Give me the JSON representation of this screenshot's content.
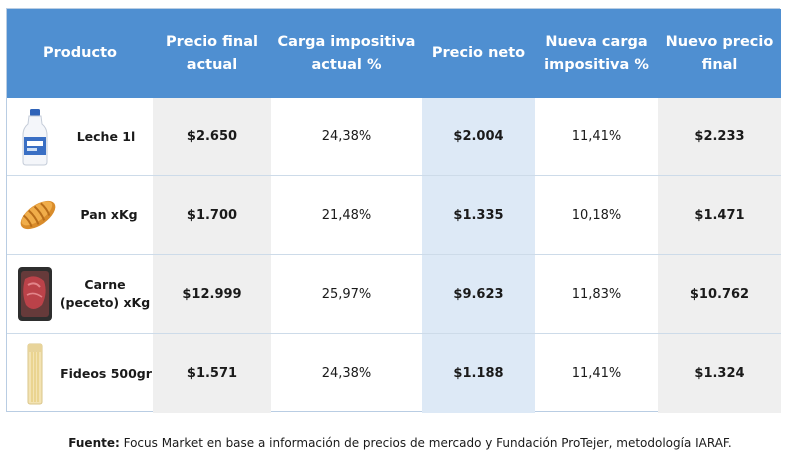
{
  "table": {
    "headers": [
      "Producto",
      "Precio final actual",
      "Carga impositiva actual %",
      "Precio neto",
      "Nueva carga impositiva %",
      "Nuevo precio final"
    ],
    "rows": [
      {
        "icon": "milk-bottle-icon",
        "product": "Leche 1l",
        "precio_final_actual": "$2.650",
        "carga_actual": "24,38%",
        "precio_neto": "$2.004",
        "nueva_carga": "11,41%",
        "nuevo_precio_final": "$2.233"
      },
      {
        "icon": "bread-icon",
        "product": "Pan xKg",
        "precio_final_actual": "$1.700",
        "carga_actual": "21,48%",
        "precio_neto": "$1.335",
        "nueva_carga": "10,18%",
        "nuevo_precio_final": "$1.471"
      },
      {
        "icon": "meat-package-icon",
        "product": "Carne (peceto) xKg",
        "precio_final_actual": "$12.999",
        "carga_actual": "25,97%",
        "precio_neto": "$9.623",
        "nueva_carga": "11,83%",
        "nuevo_precio_final": "$10.762"
      },
      {
        "icon": "pasta-package-icon",
        "product": "Fideos 500gr",
        "precio_final_actual": "$1.571",
        "carga_actual": "24,38%",
        "precio_neto": "$1.188",
        "nueva_carga": "11,41%",
        "nuevo_precio_final": "$1.324"
      }
    ]
  },
  "source": {
    "label": "Fuente:",
    "text": "Focus Market en base a información de precios de mercado y Fundación ProTejer, metodología IARAF."
  },
  "colors": {
    "header": "#4f8fd1",
    "gray_column": "#efefef",
    "blue_column": "#dde9f6"
  }
}
